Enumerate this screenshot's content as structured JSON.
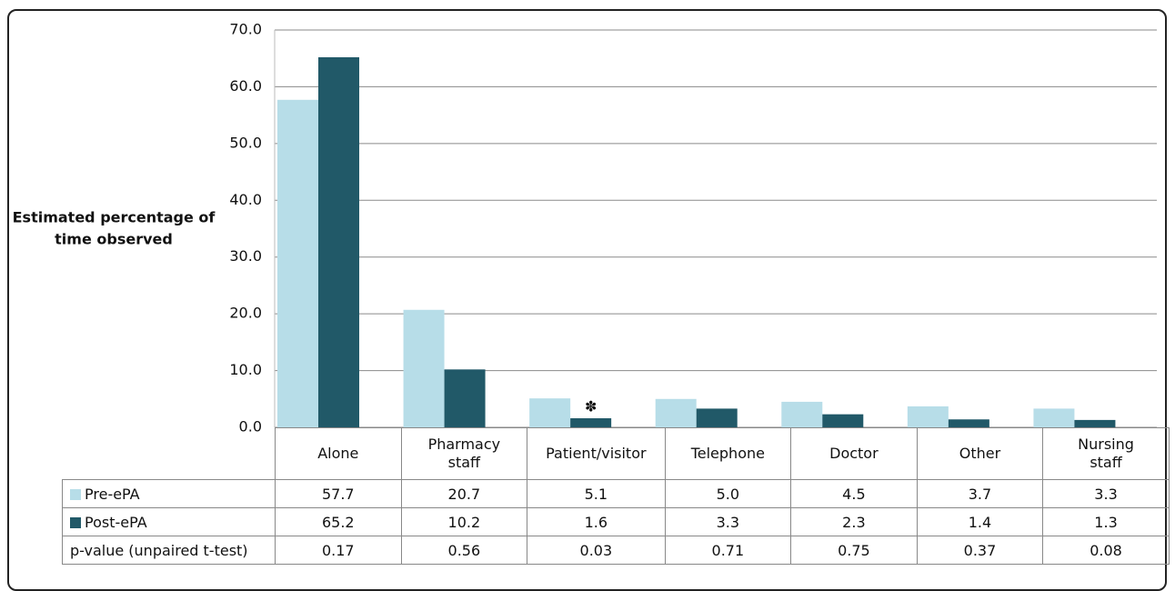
{
  "chart_data": {
    "type": "bar",
    "y_label_lines": [
      "Estimated percentage of",
      "time observed"
    ],
    "categories": [
      "Alone",
      "Pharmacy staff",
      "Patient/visitor",
      "Telephone",
      "Doctor",
      "Other",
      "Nursing staff"
    ],
    "series": [
      {
        "name": "Pre-ePA",
        "color": "#b7dde8",
        "values": [
          57.7,
          20.7,
          5.1,
          5.0,
          4.5,
          3.7,
          3.3
        ],
        "value_labels": [
          "57.7",
          "20.7",
          "5.1",
          "5.0",
          "4.5",
          "3.7",
          "3.3"
        ]
      },
      {
        "name": "Post-ePA",
        "color": "#215968",
        "values": [
          65.2,
          10.2,
          1.6,
          3.3,
          2.3,
          1.4,
          1.3
        ]
      }
    ],
    "p_value_row": {
      "name": "p-value (unpaired t-test)",
      "values": [
        0.17,
        0.56,
        0.03,
        0.71,
        0.75,
        0.37,
        0.08
      ]
    },
    "annotation": {
      "text": "✽",
      "category": 2,
      "series": 1
    },
    "ylim": [
      0,
      70
    ],
    "yticks": [
      {
        "value": 0,
        "label": "0.0"
      },
      {
        "value": 10,
        "label": "10.0"
      },
      {
        "value": 20,
        "label": "20.0"
      },
      {
        "value": 30,
        "label": "30.0"
      },
      {
        "value": 40,
        "label": "40.0"
      },
      {
        "value": 50,
        "label": "50.0"
      },
      {
        "value": 60,
        "label": "60.0"
      },
      {
        "value": 70,
        "label": "70.0"
      }
    ],
    "grid": true
  }
}
